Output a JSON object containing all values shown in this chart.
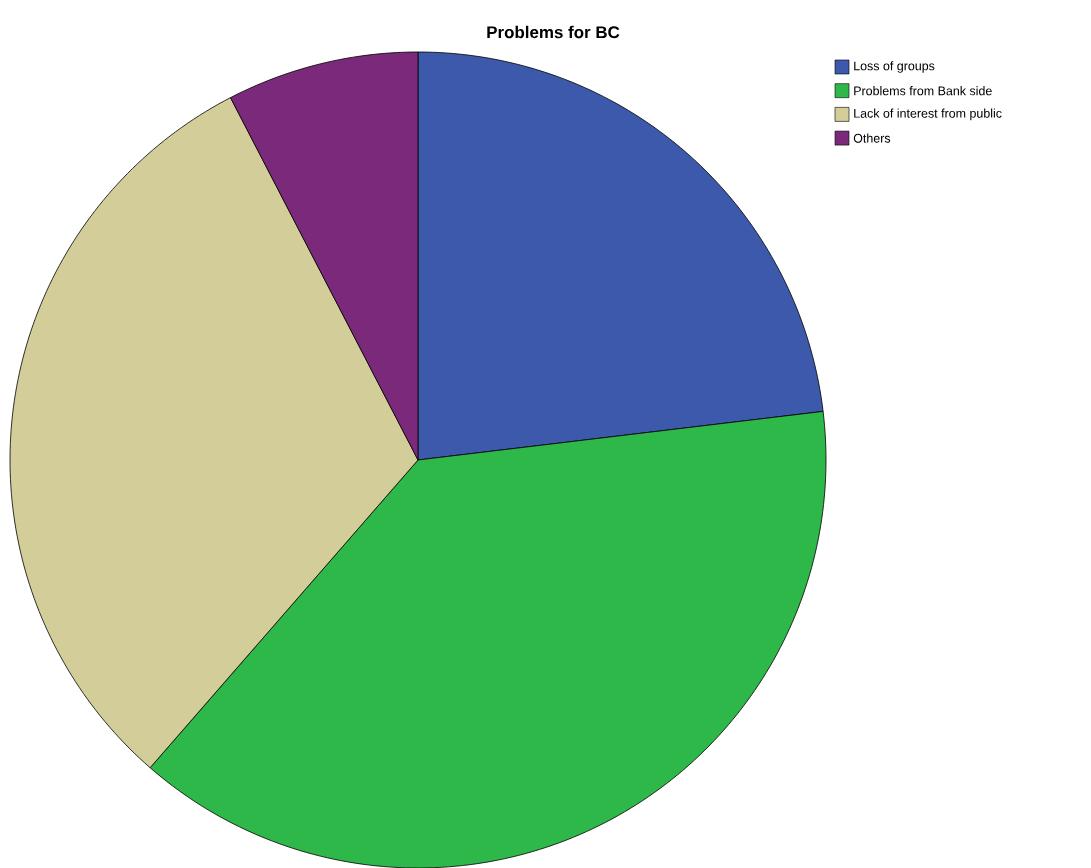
{
  "chart_data": {
    "type": "pie",
    "title": "Problems for BC",
    "categories": [
      "Loss of groups",
      "Problems from Bank side",
      "Lack of interest from public",
      "Others"
    ],
    "values": [
      23.1,
      38.3,
      31.0,
      7.6
    ],
    "colors": [
      "#3d59ab",
      "#2fb84a",
      "#d3ce99",
      "#7b2a7b"
    ],
    "legend": "top right"
  }
}
